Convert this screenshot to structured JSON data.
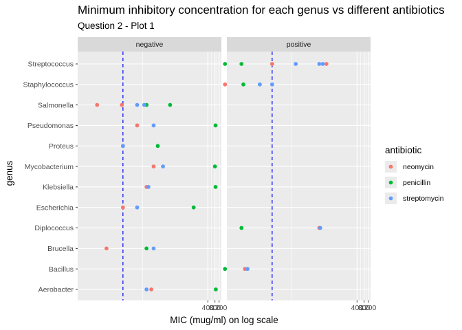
{
  "chart_data": {
    "type": "scatter",
    "title": "Minimum inhibitory concentration for each genus vs different antibiotics",
    "subtitle": "Question 2 - Plot 1",
    "xlabel": "MIC (mug/ml) on log scale",
    "ylabel": "genus",
    "x_scale": "log10",
    "x_ticks": [
      400,
      800,
      1200
    ],
    "x_tick_labels": [
      "400",
      "800",
      "1200"
    ],
    "xlim": [
      0.0012,
      1500
    ],
    "reference_line": {
      "x": 0.1,
      "style": "dashed",
      "color": "#0000ff"
    },
    "facets": [
      "negative",
      "positive"
    ],
    "genera": [
      "Aerobacter",
      "Bacillus",
      "Brucella",
      "Diplococcus",
      "Escherichia",
      "Klebsiella",
      "Mycobacterium",
      "Proteus",
      "Pseudomonas",
      "Salmonella",
      "Staphylococcus",
      "Streptococcus"
    ],
    "legend": {
      "title": "antibiotic",
      "position": "right"
    },
    "series": [
      {
        "name": "neomycin",
        "color": "#F8766D",
        "points": [
          {
            "facet": "negative",
            "genus": "Aerobacter",
            "x": 1.6
          },
          {
            "facet": "negative",
            "genus": "Brucella",
            "x": 0.02
          },
          {
            "facet": "negative",
            "genus": "Escherichia",
            "x": 0.1
          },
          {
            "facet": "negative",
            "genus": "Klebsiella",
            "x": 1.0
          },
          {
            "facet": "negative",
            "genus": "Mycobacterium",
            "x": 2.0
          },
          {
            "facet": "negative",
            "genus": "Proteus",
            "x": 0.1
          },
          {
            "facet": "negative",
            "genus": "Pseudomonas",
            "x": 0.4
          },
          {
            "facet": "negative",
            "genus": "Salmonella",
            "x": 0.008
          },
          {
            "facet": "negative",
            "genus": "Salmonella",
            "x": 0.09
          },
          {
            "facet": "positive",
            "genus": "Bacillus",
            "x": 0.007
          },
          {
            "facet": "positive",
            "genus": "Diplococcus",
            "x": 10
          },
          {
            "facet": "positive",
            "genus": "Staphylococcus",
            "x": 0.001
          },
          {
            "facet": "positive",
            "genus": "Streptococcus",
            "x": 0.1
          },
          {
            "facet": "positive",
            "genus": "Streptococcus",
            "x": 20
          }
        ]
      },
      {
        "name": "penicillin",
        "color": "#00BA38",
        "points": [
          {
            "facet": "negative",
            "genus": "Aerobacter",
            "x": 870
          },
          {
            "facet": "negative",
            "genus": "Brucella",
            "x": 1.0
          },
          {
            "facet": "negative",
            "genus": "Escherichia",
            "x": 100
          },
          {
            "facet": "negative",
            "genus": "Klebsiella",
            "x": 850
          },
          {
            "facet": "negative",
            "genus": "Mycobacterium",
            "x": 800
          },
          {
            "facet": "negative",
            "genus": "Proteus",
            "x": 3.0
          },
          {
            "facet": "negative",
            "genus": "Pseudomonas",
            "x": 850
          },
          {
            "facet": "negative",
            "genus": "Salmonella",
            "x": 10
          },
          {
            "facet": "negative",
            "genus": "Salmonella",
            "x": 1.0
          },
          {
            "facet": "positive",
            "genus": "Bacillus",
            "x": 0.001
          },
          {
            "facet": "positive",
            "genus": "Diplococcus",
            "x": 0.005
          },
          {
            "facet": "positive",
            "genus": "Staphylococcus",
            "x": 0.006
          },
          {
            "facet": "positive",
            "genus": "Streptococcus",
            "x": 0.001
          },
          {
            "facet": "positive",
            "genus": "Streptococcus",
            "x": 0.005
          }
        ]
      },
      {
        "name": "streptomycin",
        "color": "#619CFF",
        "points": [
          {
            "facet": "negative",
            "genus": "Aerobacter",
            "x": 1.0
          },
          {
            "facet": "negative",
            "genus": "Brucella",
            "x": 2.0
          },
          {
            "facet": "negative",
            "genus": "Escherichia",
            "x": 0.4
          },
          {
            "facet": "negative",
            "genus": "Klebsiella",
            "x": 1.2
          },
          {
            "facet": "negative",
            "genus": "Mycobacterium",
            "x": 5.0
          },
          {
            "facet": "negative",
            "genus": "Proteus",
            "x": 0.1
          },
          {
            "facet": "negative",
            "genus": "Pseudomonas",
            "x": 2.0
          },
          {
            "facet": "negative",
            "genus": "Salmonella",
            "x": 0.4
          },
          {
            "facet": "negative",
            "genus": "Salmonella",
            "x": 0.8
          },
          {
            "facet": "positive",
            "genus": "Bacillus",
            "x": 0.009
          },
          {
            "facet": "positive",
            "genus": "Diplococcus",
            "x": 11
          },
          {
            "facet": "positive",
            "genus": "Staphylococcus",
            "x": 0.03
          },
          {
            "facet": "positive",
            "genus": "Streptococcus",
            "x": 1.0
          },
          {
            "facet": "positive",
            "genus": "Streptococcus",
            "x": 10
          },
          {
            "facet": "positive",
            "genus": "Streptococcus",
            "x": 14
          },
          {
            "facet": "positive",
            "genus": "Staphylococcus",
            "x": 0.1
          }
        ]
      }
    ]
  }
}
